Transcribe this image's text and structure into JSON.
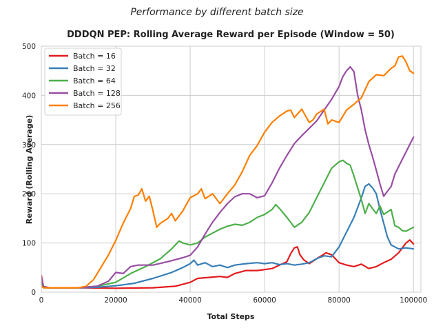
{
  "chart_data": {
    "type": "line",
    "suptitle": "Performance by different batch size",
    "title": "DDDQN PEP: Rolling Average Reward per Episode (Window = 50)",
    "xlabel": "Total Steps",
    "ylabel": "Reward (Rolling Average)",
    "xlim": [
      0,
      102000
    ],
    "ylim": [
      0,
      500
    ],
    "xticks": [
      0,
      20000,
      40000,
      60000,
      80000,
      100000
    ],
    "yticks": [
      0,
      100,
      200,
      300,
      400,
      500
    ],
    "grid": true,
    "legend_position": "top-left",
    "series": [
      {
        "name": "Batch = 16",
        "color": "#e41a1c",
        "x": [
          0,
          600,
          2000,
          10000,
          20000,
          30000,
          36000,
          40000,
          42000,
          45000,
          48000,
          50000,
          52000,
          55000,
          58000,
          60000,
          62000,
          64000,
          66000,
          67000,
          68000,
          68800,
          69500,
          70500,
          72000,
          74000,
          75500,
          76500,
          78000,
          80000,
          82000,
          84000,
          86000,
          88000,
          90000,
          92000,
          94000,
          96000,
          98000,
          99000,
          100000
        ],
        "y": [
          34,
          10,
          9,
          9,
          8,
          9,
          12,
          20,
          28,
          30,
          32,
          30,
          38,
          44,
          44,
          46,
          48,
          55,
          62,
          78,
          90,
          92,
          76,
          66,
          58,
          68,
          75,
          80,
          76,
          60,
          55,
          52,
          57,
          48,
          52,
          60,
          67,
          80,
          100,
          106,
          98
        ]
      },
      {
        "name": "Batch = 32",
        "color": "#377eb8",
        "x": [
          0,
          600,
          2000,
          10000,
          15000,
          20000,
          25000,
          30000,
          35000,
          38000,
          40000,
          41000,
          42000,
          44000,
          46000,
          48000,
          50000,
          52000,
          55000,
          58000,
          60000,
          62000,
          64000,
          66000,
          68000,
          70000,
          72000,
          74000,
          76000,
          78000,
          80000,
          82000,
          84000,
          86000,
          87000,
          88000,
          89000,
          90000,
          91000,
          92000,
          93000,
          94000,
          96000,
          98000,
          100000
        ],
        "y": [
          28,
          10,
          9,
          9,
          10,
          13,
          18,
          28,
          40,
          50,
          58,
          65,
          55,
          60,
          52,
          55,
          50,
          55,
          58,
          60,
          58,
          60,
          56,
          58,
          55,
          57,
          60,
          68,
          74,
          72,
          92,
          122,
          152,
          192,
          215,
          220,
          212,
          200,
          168,
          140,
          112,
          96,
          88,
          90,
          88
        ]
      },
      {
        "name": "Batch = 64",
        "color": "#4daf4a",
        "x": [
          0,
          600,
          2000,
          10000,
          15000,
          20000,
          24000,
          28000,
          32000,
          35000,
          37000,
          38000,
          40000,
          42000,
          44000,
          46000,
          48000,
          50000,
          52000,
          54000,
          56000,
          58000,
          60000,
          62000,
          63000,
          64000,
          66000,
          68000,
          70000,
          72000,
          74000,
          76000,
          78000,
          80000,
          81000,
          82000,
          83000,
          84000,
          86000,
          87000,
          88000,
          90000,
          91000,
          92000,
          94000,
          95000,
          96000,
          97000,
          98000,
          100000
        ],
        "y": [
          22,
          9,
          9,
          9,
          12,
          20,
          38,
          52,
          68,
          88,
          104,
          100,
          96,
          100,
          112,
          120,
          128,
          134,
          138,
          136,
          142,
          152,
          158,
          168,
          178,
          170,
          152,
          132,
          142,
          162,
          192,
          222,
          252,
          265,
          268,
          262,
          258,
          236,
          188,
          160,
          180,
          160,
          175,
          158,
          168,
          135,
          132,
          125,
          124,
          132
        ]
      },
      {
        "name": "Batch = 128",
        "color": "#984ea3",
        "x": [
          0,
          600,
          2000,
          10000,
          15000,
          18000,
          20000,
          22000,
          24000,
          26000,
          30000,
          34000,
          38000,
          40000,
          42000,
          44000,
          46000,
          48000,
          50000,
          52000,
          54000,
          56000,
          58000,
          60000,
          62000,
          64000,
          66000,
          68000,
          70000,
          72000,
          74000,
          76000,
          78000,
          80000,
          81000,
          82000,
          83000,
          84000,
          85000,
          86000,
          87000,
          88000,
          89000,
          90000,
          91000,
          92000,
          93000,
          94000,
          95000,
          96000,
          98000,
          100000
        ],
        "y": [
          30,
          12,
          9,
          9,
          12,
          22,
          40,
          38,
          52,
          55,
          55,
          62,
          70,
          75,
          92,
          118,
          142,
          162,
          180,
          194,
          200,
          200,
          192,
          196,
          222,
          252,
          278,
          302,
          318,
          333,
          348,
          370,
          392,
          418,
          438,
          450,
          458,
          448,
          400,
          370,
          330,
          300,
          275,
          248,
          220,
          195,
          205,
          215,
          240,
          255,
          285,
          315
        ]
      },
      {
        "name": "Batch = 256",
        "color": "#ff7f00",
        "x": [
          0,
          600,
          2000,
          10000,
          12000,
          14000,
          16000,
          18000,
          20000,
          22000,
          24000,
          25000,
          26000,
          27000,
          28000,
          29000,
          30000,
          31000,
          32000,
          34000,
          35000,
          36000,
          38000,
          40000,
          42000,
          43000,
          44000,
          46000,
          48000,
          50000,
          52000,
          54000,
          56000,
          58000,
          60000,
          62000,
          64000,
          66000,
          67000,
          68000,
          70000,
          72000,
          73000,
          74000,
          76000,
          77000,
          78000,
          80000,
          82000,
          84000,
          86000,
          88000,
          90000,
          92000,
          94000,
          95000,
          96000,
          97000,
          98000,
          99000,
          100000
        ],
        "y": [
          12,
          9,
          9,
          9,
          12,
          25,
          50,
          75,
          105,
          140,
          170,
          195,
          197,
          210,
          185,
          195,
          165,
          132,
          140,
          150,
          160,
          145,
          165,
          192,
          200,
          210,
          190,
          200,
          180,
          200,
          218,
          245,
          278,
          298,
          325,
          345,
          358,
          368,
          370,
          355,
          372,
          345,
          350,
          362,
          372,
          342,
          350,
          345,
          370,
          382,
          395,
          428,
          442,
          440,
          455,
          460,
          478,
          480,
          468,
          450,
          445
        ]
      }
    ]
  }
}
